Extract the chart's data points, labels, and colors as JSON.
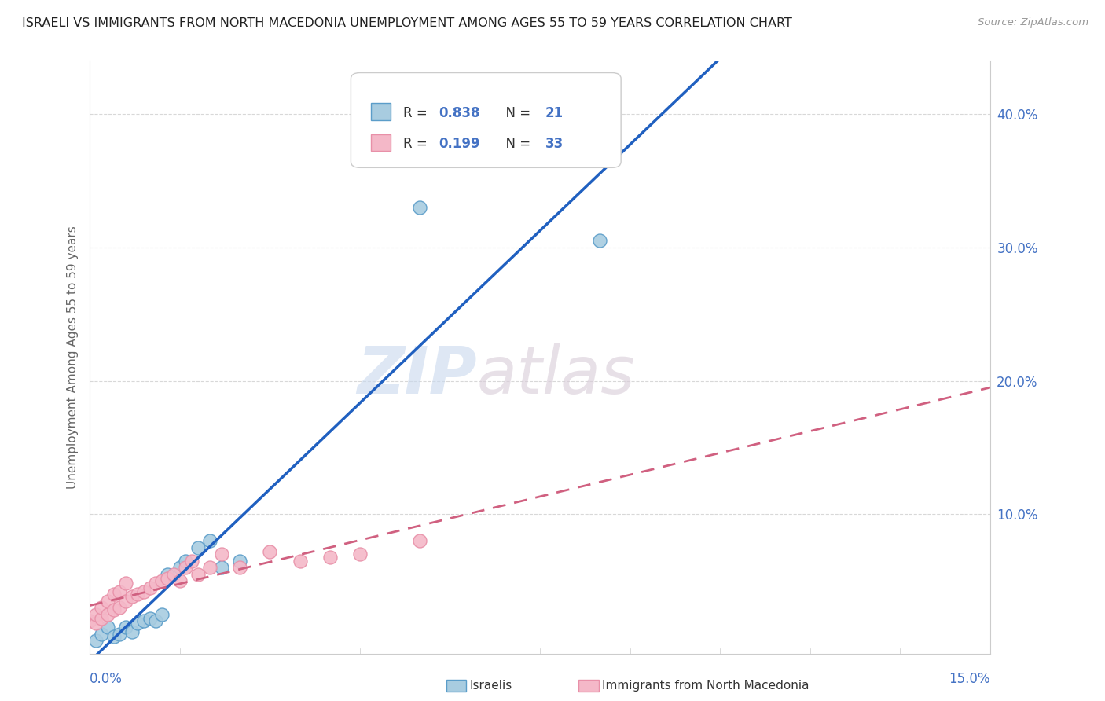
{
  "title": "ISRAELI VS IMMIGRANTS FROM NORTH MACEDONIA UNEMPLOYMENT AMONG AGES 55 TO 59 YEARS CORRELATION CHART",
  "source": "Source: ZipAtlas.com",
  "ylabel": "Unemployment Among Ages 55 to 59 years",
  "xlim": [
    0.0,
    0.15
  ],
  "ylim": [
    -0.005,
    0.44
  ],
  "ytick_vals": [
    0.1,
    0.2,
    0.3,
    0.4
  ],
  "ytick_labels": [
    "10.0%",
    "20.0%",
    "30.0%",
    "40.0%"
  ],
  "xtick_left_label": "0.0%",
  "xtick_right_label": "15.0%",
  "israeli_color": "#a8cce0",
  "israeli_edge_color": "#5b9dc9",
  "immigrant_color": "#f4b8c8",
  "immigrant_edge_color": "#e890a8",
  "trendline_israeli_color": "#2060c0",
  "trendline_immigrant_color": "#d06080",
  "watermark_zip_color": "#c8d8ee",
  "watermark_atlas_color": "#d8ccd8",
  "background_color": "#ffffff",
  "grid_color": "#d8d8d8",
  "legend_box_color": "#ffffff",
  "legend_border_color": "#cccccc",
  "r1_val": "0.838",
  "n1_val": "21",
  "r2_val": "0.199",
  "n2_val": "33",
  "title_color": "#222222",
  "source_color": "#999999",
  "ylabel_color": "#666666",
  "tick_label_color": "#4472c4",
  "israelis_x": [
    0.001,
    0.002,
    0.003,
    0.004,
    0.005,
    0.006,
    0.007,
    0.008,
    0.009,
    0.01,
    0.011,
    0.012,
    0.013,
    0.015,
    0.016,
    0.018,
    0.02,
    0.022,
    0.025,
    0.055,
    0.085
  ],
  "israelis_y": [
    0.005,
    0.01,
    0.015,
    0.008,
    0.01,
    0.015,
    0.012,
    0.018,
    0.02,
    0.022,
    0.02,
    0.025,
    0.055,
    0.06,
    0.065,
    0.075,
    0.08,
    0.06,
    0.065,
    0.33,
    0.305
  ],
  "immigrants_x": [
    0.0,
    0.001,
    0.001,
    0.002,
    0.002,
    0.003,
    0.003,
    0.004,
    0.004,
    0.005,
    0.005,
    0.006,
    0.006,
    0.007,
    0.008,
    0.009,
    0.01,
    0.011,
    0.012,
    0.013,
    0.014,
    0.015,
    0.016,
    0.017,
    0.018,
    0.02,
    0.022,
    0.025,
    0.03,
    0.035,
    0.04,
    0.045,
    0.055
  ],
  "immigrants_y": [
    0.02,
    0.018,
    0.025,
    0.022,
    0.03,
    0.025,
    0.035,
    0.028,
    0.04,
    0.03,
    0.042,
    0.035,
    0.048,
    0.038,
    0.04,
    0.042,
    0.045,
    0.048,
    0.05,
    0.052,
    0.055,
    0.05,
    0.06,
    0.065,
    0.055,
    0.06,
    0.07,
    0.06,
    0.072,
    0.065,
    0.068,
    0.07,
    0.08
  ]
}
